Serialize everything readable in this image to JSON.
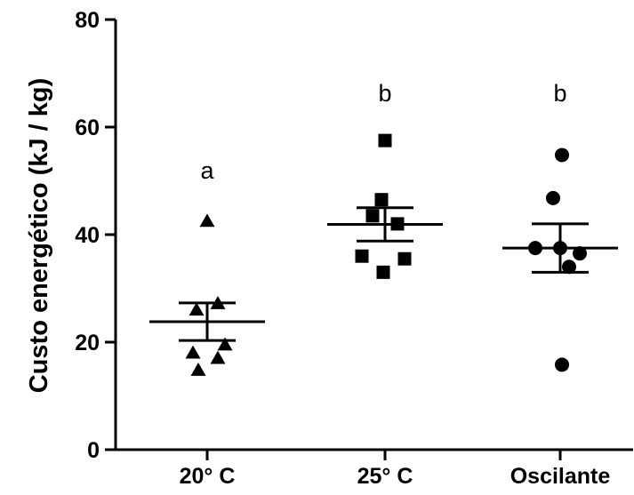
{
  "chart_data": {
    "type": "scatter",
    "ylabel": "Custo energético (kJ / kg)",
    "ylim": [
      0,
      80
    ],
    "yticks": [
      0,
      20,
      40,
      60,
      80
    ],
    "grid": false,
    "categories": [
      "20° C",
      "25° C",
      "Oscilante"
    ],
    "groups": [
      {
        "category": "20° C",
        "marker": "triangle",
        "letter": "a",
        "points": [
          42.5,
          27.2,
          26.0,
          19.5,
          18.0,
          17.0,
          14.8
        ],
        "mean": 23.8,
        "sem_upper": 27.3,
        "sem_lower": 20.3
      },
      {
        "category": "25° C",
        "marker": "square",
        "letter": "b",
        "points": [
          57.5,
          46.5,
          43.5,
          42.0,
          36.0,
          35.5,
          33.0
        ],
        "mean": 41.9,
        "sem_upper": 45.0,
        "sem_lower": 38.8
      },
      {
        "category": "Oscilante",
        "marker": "circle",
        "letter": "b",
        "points": [
          54.8,
          46.8,
          37.5,
          37.5,
          36.5,
          34.0,
          15.8
        ],
        "mean": 37.5,
        "sem_upper": 42.0,
        "sem_lower": 33.0
      }
    ]
  }
}
